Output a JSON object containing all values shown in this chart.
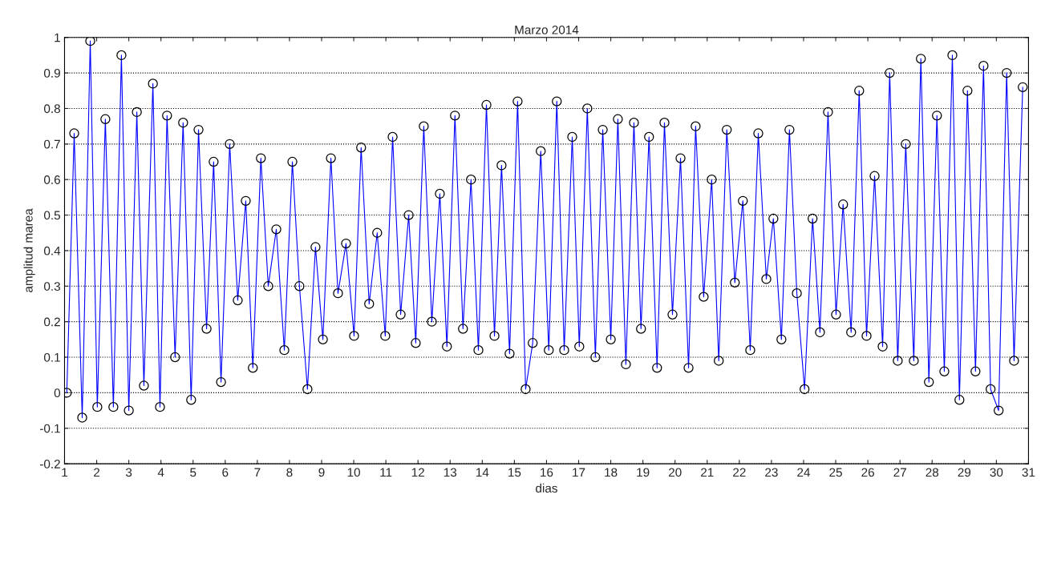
{
  "chart_data": {
    "type": "line",
    "title": "Marzo 2014",
    "xlabel": "dias",
    "ylabel": "amplitud marea",
    "x": [
      1.07,
      1.3,
      1.55,
      1.8,
      2.02,
      2.27,
      2.52,
      2.77,
      3.0,
      3.25,
      3.47,
      3.75,
      3.97,
      4.19,
      4.44,
      4.69,
      4.94,
      5.17,
      5.42,
      5.64,
      5.87,
      6.14,
      6.39,
      6.64,
      6.86,
      7.11,
      7.34,
      7.59,
      7.84,
      8.09,
      8.31,
      8.56,
      8.81,
      9.04,
      9.29,
      9.51,
      9.76,
      10.01,
      10.23,
      10.48,
      10.73,
      10.98,
      11.21,
      11.46,
      11.71,
      11.93,
      12.18,
      12.43,
      12.68,
      12.9,
      13.15,
      13.4,
      13.65,
      13.88,
      14.13,
      14.38,
      14.6,
      14.85,
      15.1,
      15.35,
      15.57,
      15.82,
      16.07,
      16.32,
      16.55,
      16.8,
      17.02,
      17.27,
      17.52,
      17.75,
      18.0,
      18.22,
      18.47,
      18.72,
      18.94,
      19.19,
      19.44,
      19.67,
      19.92,
      20.17,
      20.42,
      20.64,
      20.89,
      21.14,
      21.36,
      21.61,
      21.86,
      22.11,
      22.34,
      22.59,
      22.84,
      23.06,
      23.31,
      23.56,
      23.79,
      24.03,
      24.28,
      24.51,
      24.76,
      25.01,
      25.23,
      25.48,
      25.73,
      25.96,
      26.21,
      26.46,
      26.68,
      26.93,
      27.18,
      27.43,
      27.65,
      27.9,
      28.15,
      28.38,
      28.63,
      28.85,
      29.1,
      29.35,
      29.6,
      29.82,
      30.07,
      30.32,
      30.55,
      30.82
    ],
    "series": [
      {
        "color": "#0000ff",
        "values": [
          0,
          0.73,
          -0.07,
          0.99,
          -0.04,
          0.77,
          -0.04,
          0.95,
          -0.05,
          0.79,
          0.02,
          0.87,
          -0.04,
          0.78,
          0.1,
          0.76,
          -0.02,
          0.74,
          0.18,
          0.65,
          0.03,
          0.7,
          0.26,
          0.54,
          0.07,
          0.66,
          0.3,
          0.46,
          0.12,
          0.65,
          0.3,
          0.01,
          0.41,
          0.15,
          0.66,
          0.28,
          0.42,
          0.16,
          0.69,
          0.25,
          0.45,
          0.16,
          0.72,
          0.22,
          0.5,
          0.14,
          0.75,
          0.2,
          0.56,
          0.13,
          0.78,
          0.18,
          0.6,
          0.12,
          0.81,
          0.16,
          0.64,
          0.11,
          0.82,
          0.01,
          0.14,
          0.68,
          0.12,
          0.82,
          0.12,
          0.72,
          0.13,
          0.8,
          0.1,
          0.74,
          0.15,
          0.77,
          0.08,
          0.76,
          0.18,
          0.72,
          0.07,
          0.76,
          0.22,
          0.66,
          0.07,
          0.75,
          0.27,
          0.6,
          0.09,
          0.74,
          0.31,
          0.54,
          0.12,
          0.73,
          0.32,
          0.49,
          0.15,
          0.74,
          0.28,
          0.01,
          0.49,
          0.17,
          0.79,
          0.22,
          0.53,
          0.17,
          0.85,
          0.16,
          0.61,
          0.13,
          0.9,
          0.09,
          0.7,
          0.09,
          0.94,
          0.03,
          0.78,
          0.06,
          0.95,
          -0.02,
          0.85,
          0.06,
          0.92,
          0.01,
          -0.05,
          0.9,
          0.09,
          0.86
        ]
      }
    ],
    "xlim": [
      1,
      31
    ],
    "xticks": [
      1,
      2,
      3,
      4,
      5,
      6,
      7,
      8,
      9,
      10,
      11,
      12,
      13,
      14,
      15,
      16,
      17,
      18,
      19,
      20,
      21,
      22,
      23,
      24,
      25,
      26,
      27,
      28,
      29,
      30,
      31
    ],
    "ylim": [
      -0.2,
      1
    ],
    "yticks": [
      -0.2,
      -0.1,
      0,
      0.1,
      0.2,
      0.3,
      0.4,
      0.5,
      0.6,
      0.7,
      0.8,
      0.9,
      1
    ],
    "grid": "y",
    "marker": "circle",
    "line_style": "solid",
    "legend": false
  }
}
